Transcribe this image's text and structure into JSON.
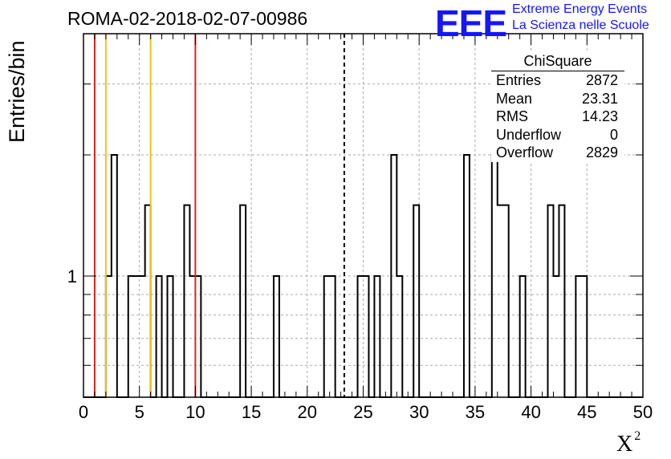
{
  "title": "ROMA-02-2018-02-07-00986",
  "logo": {
    "mark": "EEE",
    "line1": "Extreme Energy Events",
    "line2": "La Scienza nelle Scuole",
    "color": "#1515ff"
  },
  "stats": {
    "name": "ChiSquare",
    "rows": [
      {
        "label": "Entries",
        "value": "2872"
      },
      {
        "label": "Mean",
        "value": "23.31"
      },
      {
        "label": "RMS",
        "value": "14.23"
      },
      {
        "label": "Underflow",
        "value": "0"
      },
      {
        "label": "Overflow",
        "value": "2829"
      }
    ]
  },
  "chart_data": {
    "type": "bar",
    "xlabel": "X",
    "xlabel_superscript": "2",
    "ylabel": "Entries/bin",
    "xlim": [
      0,
      50
    ],
    "ylim": [
      0.5,
      4
    ],
    "log_y": true,
    "grid": true,
    "bin_width": 0.5,
    "x_ticks": [
      "0",
      "5",
      "10",
      "15",
      "20",
      "25",
      "30",
      "35",
      "40",
      "45",
      "50"
    ],
    "y_tick_labels": [
      {
        "value": 1,
        "label": "1"
      }
    ],
    "bins": [
      {
        "x": 2.0,
        "count": 1
      },
      {
        "x": 2.5,
        "count": 2
      },
      {
        "x": 4.0,
        "count": 1
      },
      {
        "x": 4.5,
        "count": 1
      },
      {
        "x": 5.0,
        "count": 1
      },
      {
        "x": 5.5,
        "count": 1.5
      },
      {
        "x": 6.5,
        "count": 1
      },
      {
        "x": 7.5,
        "count": 1
      },
      {
        "x": 9.0,
        "count": 1.5
      },
      {
        "x": 9.5,
        "count": 1
      },
      {
        "x": 10.0,
        "count": 1
      },
      {
        "x": 14.0,
        "count": 1.5
      },
      {
        "x": 17.0,
        "count": 1
      },
      {
        "x": 21.5,
        "count": 1
      },
      {
        "x": 22.0,
        "count": 1
      },
      {
        "x": 24.5,
        "count": 1
      },
      {
        "x": 25.0,
        "count": 1
      },
      {
        "x": 26.0,
        "count": 1
      },
      {
        "x": 27.5,
        "count": 2
      },
      {
        "x": 28.0,
        "count": 1
      },
      {
        "x": 29.5,
        "count": 1.5
      },
      {
        "x": 34.0,
        "count": 2
      },
      {
        "x": 36.5,
        "count": 2
      },
      {
        "x": 37.0,
        "count": 1.5
      },
      {
        "x": 37.5,
        "count": 1.5
      },
      {
        "x": 39.0,
        "count": 1
      },
      {
        "x": 41.5,
        "count": 1.5
      },
      {
        "x": 42.0,
        "count": 1
      },
      {
        "x": 42.5,
        "count": 1.5
      },
      {
        "x": 44.0,
        "count": 1
      },
      {
        "x": 44.5,
        "count": 1
      }
    ],
    "vertical_lines": [
      {
        "x": 1.0,
        "color": "#dd2222",
        "style": "solid"
      },
      {
        "x": 2.0,
        "color": "#f0c020",
        "style": "solid"
      },
      {
        "x": 6.0,
        "color": "#f0c020",
        "style": "solid"
      },
      {
        "x": 10.0,
        "color": "#dd2222",
        "style": "solid"
      },
      {
        "x": 23.31,
        "color": "#000000",
        "style": "dashed"
      }
    ]
  }
}
